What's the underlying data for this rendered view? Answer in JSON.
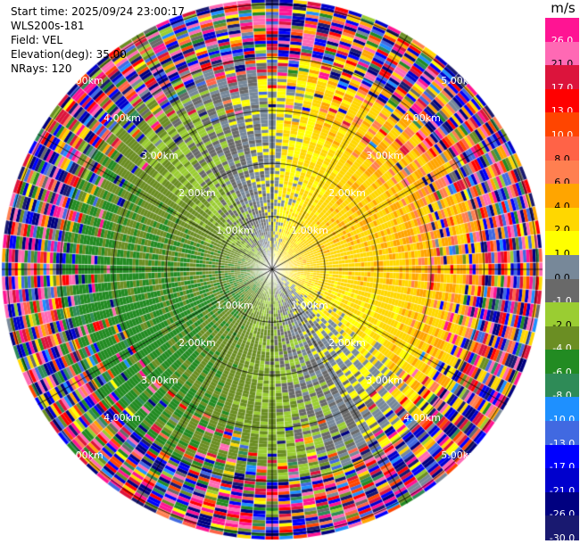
{
  "info": {
    "start_time": "Start time: 2025/09/24 23:00:17",
    "instrument": "WLS200s-181",
    "field": "Field: VEL",
    "elevation": "Elevation(deg): 35.00",
    "nrays": "NRays: 120"
  },
  "colorbar": {
    "unit": "m/s",
    "levels": [
      "26.0",
      "21.0",
      "17.0",
      "13.0",
      "10.0",
      "8.0",
      "6.0",
      "4.0",
      "2.0",
      "1.0",
      "0.0",
      "-1.0",
      "-2.0",
      "-4.0",
      "-6.0",
      "-8.0",
      "-10.0",
      "-13.0",
      "-17.0",
      "-21.0",
      "-26.0",
      "-30.0"
    ],
    "colors": [
      "#ff1493",
      "#ff69b4",
      "#dc143c",
      "#ff0000",
      "#ff4500",
      "#ff6347",
      "#ff7f50",
      "#ffa500",
      "#ffd700",
      "#ffff00",
      "#778899",
      "#696969",
      "#9acd32",
      "#6b8e23",
      "#228b22",
      "#2e8b57",
      "#1e90ff",
      "#4169e1",
      "#0000ff",
      "#0000cd",
      "#000080",
      "#191970"
    ]
  },
  "chart_data": {
    "type": "ppi",
    "field": "VEL",
    "units": "m/s",
    "elevation_deg": 35.0,
    "nrays": 120,
    "range_rings_km": [
      1.0,
      2.0,
      3.0,
      4.0,
      5.0
    ],
    "range_ring_labels": [
      "1.00km",
      "2.00km",
      "3.00km",
      "4.00km",
      "5.00km"
    ],
    "max_range_km": 5.1,
    "spoke_azimuths_deg": [
      0,
      30,
      60,
      90,
      120,
      150,
      180,
      210,
      240,
      270,
      300,
      330
    ],
    "velocity_range": [
      -30.0,
      30.0
    ],
    "velocity_pattern": "dipole: positive (receding) ~2-6 m/s toward north-east and south-east, negative (approaching) ~-1 to -4 m/s toward west/south-west; near-zero along north-south line; noisy outside ~3.5 km"
  }
}
